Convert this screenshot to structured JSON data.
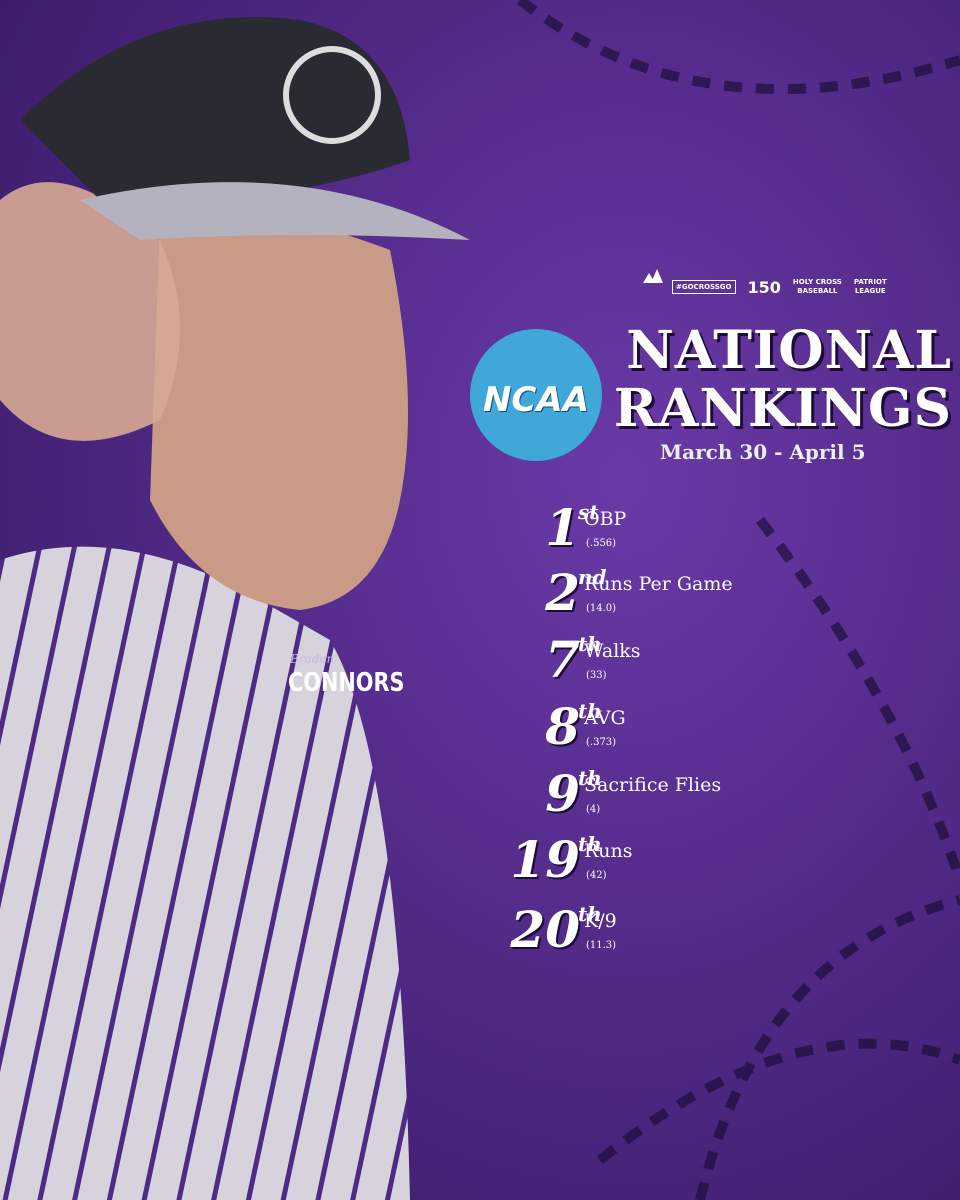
{
  "sponsors": {
    "hashtag": "#GOCROSSGO",
    "anniversary": "150",
    "school": "HOLY CROSS",
    "sport": "BASEBALL",
    "league_top": "PATRIOT",
    "league_bottom": "LEAGUE"
  },
  "logo": "NCAA",
  "header": {
    "line1": "NATIONAL",
    "line2": "RANKINGS",
    "date": "March 30 - April 5"
  },
  "player": {
    "first_name": "Braden",
    "last_name": "CONNORS"
  },
  "rankings": [
    {
      "rank": "1",
      "suffix": "st",
      "stat": "OBP",
      "value": "(.556)"
    },
    {
      "rank": "2",
      "suffix": "nd",
      "stat": "Runs Per Game",
      "value": "(14.0)"
    },
    {
      "rank": "7",
      "suffix": "th",
      "stat": "Walks",
      "value": "(33)"
    },
    {
      "rank": "8",
      "suffix": "th",
      "stat": "AVG",
      "value": "(.373)"
    },
    {
      "rank": "9",
      "suffix": "th",
      "stat": "Sacrifice Flies",
      "value": "(4)"
    },
    {
      "rank": "19",
      "suffix": "th",
      "stat": "Runs",
      "value": "(42)"
    },
    {
      "rank": "20",
      "suffix": "th",
      "stat": "K/9",
      "value": "(11.3)"
    }
  ]
}
